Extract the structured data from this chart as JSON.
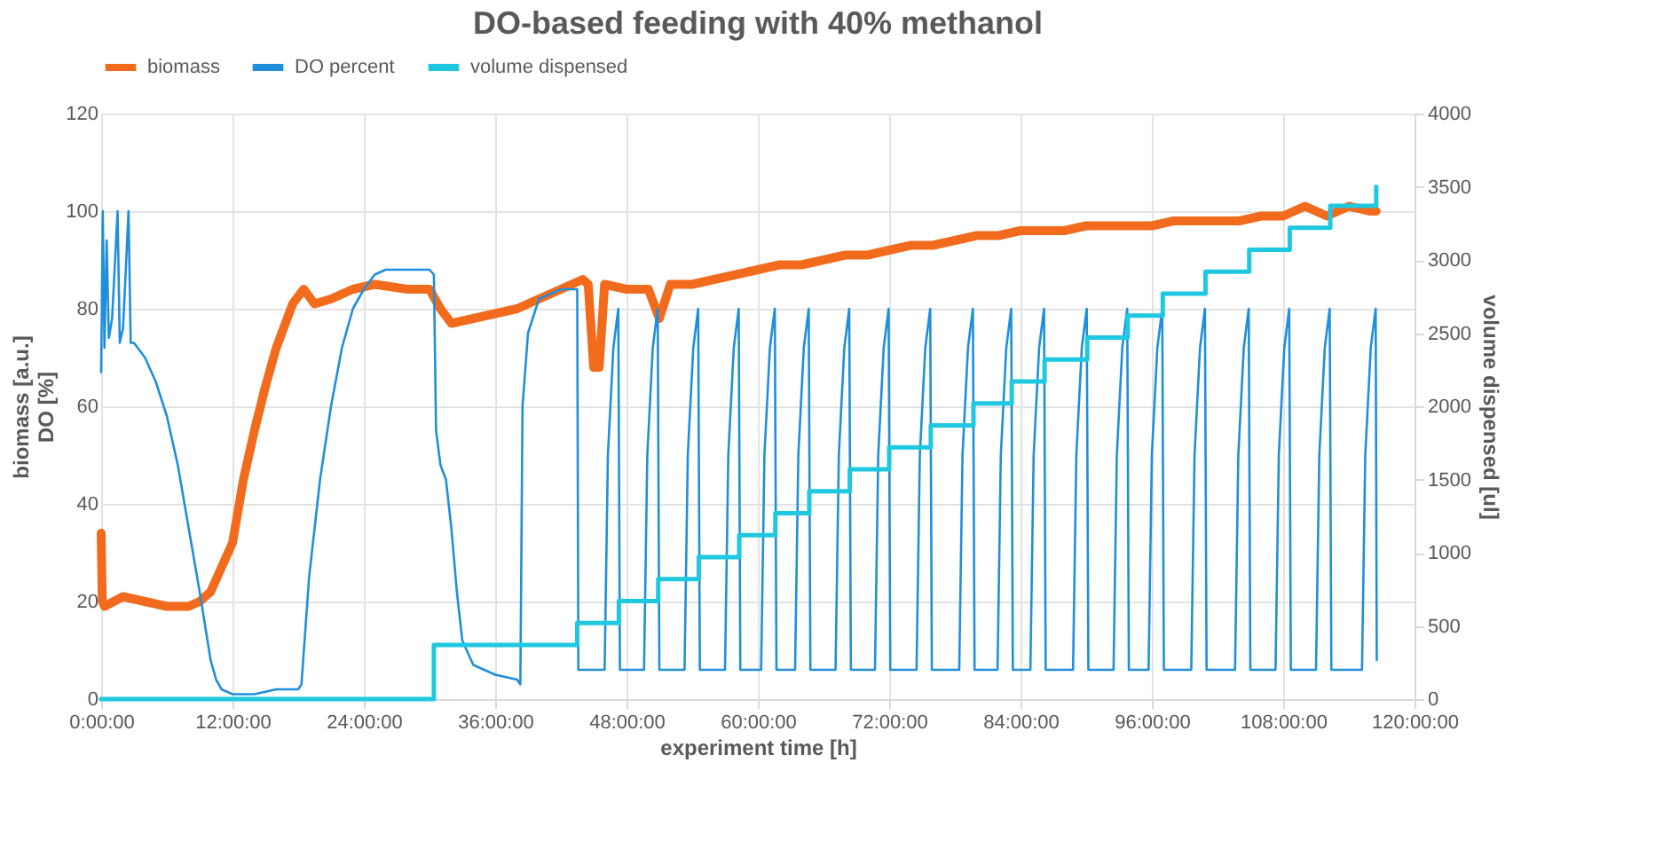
{
  "chart_data": {
    "type": "line",
    "title": "DO-based feeding with 40% methanol",
    "xlabel": "experiment time [h]",
    "ylabel": "biomass [a.u.]\nDO [%]",
    "y2label": "volume dispensed [ul]",
    "xlim": [
      0,
      120
    ],
    "xticks": [
      {
        "value": 0,
        "label": "0:00:00"
      },
      {
        "value": 12,
        "label": "12:00:00"
      },
      {
        "value": 24,
        "label": "24:00:00"
      },
      {
        "value": 36,
        "label": "36:00:00"
      },
      {
        "value": 48,
        "label": "48:00:00"
      },
      {
        "value": 60,
        "label": "60:00:00"
      },
      {
        "value": 72,
        "label": "72:00:00"
      },
      {
        "value": 84,
        "label": "84:00:00"
      },
      {
        "value": 96,
        "label": "96:00:00"
      },
      {
        "value": 108,
        "label": "108:00:00"
      },
      {
        "value": 120,
        "label": "120:00:00"
      }
    ],
    "ylim": [
      0,
      120
    ],
    "yticks": [
      0,
      20,
      40,
      60,
      80,
      100,
      120
    ],
    "y2lim": [
      0,
      4000
    ],
    "y2ticks": [
      0,
      500,
      1000,
      1500,
      2000,
      2500,
      3000,
      3500,
      4000
    ],
    "grid": true,
    "legend": "top",
    "marker": "none",
    "series": [
      {
        "name": "biomass",
        "color": "#f26b1d",
        "x": [
          0,
          0.1,
          0.3,
          2,
          4,
          6,
          8,
          9,
          10,
          11,
          12,
          13,
          14,
          15,
          16,
          17,
          17.5,
          18.5,
          19.5,
          21,
          23,
          25,
          28,
          30,
          31,
          32,
          34,
          36,
          38,
          40,
          42,
          44,
          44.5,
          45,
          45.5,
          46,
          48,
          50,
          51,
          52,
          54,
          56,
          58,
          60,
          62,
          64,
          66,
          68,
          70,
          72,
          74,
          76,
          78,
          80,
          82,
          84,
          86,
          88,
          90,
          92,
          94,
          96,
          98,
          100,
          102,
          104,
          106,
          108,
          110,
          112,
          114,
          116,
          116.5
        ],
        "values": [
          34,
          20,
          19,
          21,
          20,
          19,
          19,
          20,
          22,
          27,
          32,
          45,
          55,
          64,
          72,
          78,
          81,
          84,
          81,
          82,
          84,
          85,
          84,
          84,
          80,
          77,
          78,
          79,
          80,
          82,
          84,
          86,
          85,
          68,
          68,
          85,
          84,
          84,
          78,
          85,
          85,
          86,
          87,
          88,
          89,
          89,
          90,
          91,
          91,
          92,
          93,
          93,
          94,
          95,
          95,
          96,
          96,
          96,
          97,
          97,
          97,
          97,
          98,
          98,
          98,
          98,
          99,
          99,
          101,
          99,
          101,
          100,
          100
        ]
      },
      {
        "name": "DO percent",
        "color": "#1f8fdc",
        "x": [
          0,
          0.15,
          0.3,
          0.5,
          0.7,
          1.0,
          1.5,
          1.7,
          2.0,
          2.5,
          2.7,
          3.0,
          4,
          5,
          6,
          7,
          8,
          9,
          9.5,
          10,
          10.5,
          11,
          12,
          14,
          16,
          18,
          18.3,
          19,
          19.5,
          20,
          21,
          22,
          23,
          24,
          25,
          26,
          28,
          30,
          30.4,
          30.6,
          31,
          31.5,
          32,
          32.5,
          33,
          34,
          36,
          38,
          38.3,
          38.5,
          39,
          40,
          42,
          43.5,
          43.6,
          46.0,
          46.3,
          46.8,
          47.25,
          47.4,
          49.6,
          49.9,
          50.4,
          50.85,
          51.0,
          53.3,
          53.6,
          54.1,
          54.55,
          54.7,
          57.0,
          57.3,
          57.8,
          58.25,
          58.4,
          60.3,
          60.6,
          61.1,
          61.55,
          61.7,
          63.4,
          63.7,
          64.2,
          64.65,
          64.8,
          67.1,
          67.4,
          67.9,
          68.35,
          68.5,
          70.7,
          71.0,
          71.5,
          71.95,
          72.1,
          74.5,
          74.8,
          75.3,
          75.75,
          75.9,
          78.4,
          78.7,
          79.2,
          79.65,
          79.8,
          81.9,
          82.2,
          82.7,
          83.15,
          83.3,
          84.9,
          85.2,
          85.7,
          86.15,
          86.3,
          88.8,
          89.1,
          89.6,
          90.05,
          90.2,
          92.5,
          92.8,
          93.3,
          93.75,
          93.9,
          95.7,
          96.0,
          96.5,
          96.95,
          97.1,
          99.6,
          99.9,
          100.4,
          100.85,
          101.0,
          103.6,
          103.9,
          104.4,
          104.85,
          105.0,
          107.3,
          107.6,
          108.1,
          108.55,
          108.7,
          111.0,
          111.3,
          111.8,
          112.25,
          112.4,
          115.2,
          115.5,
          116.0,
          116.45,
          116.55
        ],
        "values": [
          67,
          100,
          72,
          94,
          74,
          78,
          100,
          73,
          76,
          100,
          73,
          73,
          70,
          65,
          58,
          48,
          35,
          22,
          15,
          8,
          4,
          2,
          1,
          1,
          2,
          2,
          3,
          25,
          35,
          45,
          60,
          72,
          80,
          84,
          87,
          88,
          88,
          88,
          87,
          55,
          48,
          45,
          35,
          22,
          12,
          7,
          5,
          4,
          3,
          60,
          75,
          82,
          84,
          84,
          6,
          6,
          50,
          72,
          80,
          6,
          6,
          50,
          72,
          80,
          6,
          6,
          50,
          72,
          80,
          6,
          6,
          50,
          72,
          80,
          6,
          6,
          50,
          72,
          80,
          6,
          6,
          50,
          72,
          80,
          6,
          6,
          50,
          72,
          80,
          6,
          6,
          50,
          72,
          80,
          6,
          6,
          50,
          72,
          80,
          6,
          6,
          50,
          72,
          80,
          6,
          6,
          50,
          72,
          80,
          6,
          6,
          50,
          72,
          80,
          6,
          6,
          50,
          72,
          80,
          6,
          6,
          50,
          72,
          80,
          6,
          6,
          50,
          72,
          80,
          6,
          6,
          50,
          72,
          80,
          6,
          6,
          50,
          72,
          80,
          6,
          6,
          50,
          72,
          80,
          6,
          6,
          50,
          72,
          80,
          6,
          6,
          50,
          72,
          80,
          8
        ]
      },
      {
        "name": "volume dispensed",
        "color": "#1ec8e0",
        "type": "step",
        "axis": "y2",
        "x": [
          0,
          30.4,
          43.5,
          47.3,
          50.9,
          54.6,
          58.3,
          61.6,
          64.7,
          68.4,
          72.0,
          75.8,
          79.7,
          83.2,
          86.2,
          90.1,
          93.8,
          97.0,
          100.9,
          104.9,
          108.6,
          112.3,
          116.5
        ],
        "values": [
          0,
          370,
          520,
          670,
          820,
          970,
          1120,
          1270,
          1420,
          1570,
          1720,
          1870,
          2020,
          2170,
          2320,
          2470,
          2620,
          2770,
          2920,
          3070,
          3220,
          3370,
          3500
        ]
      }
    ]
  }
}
